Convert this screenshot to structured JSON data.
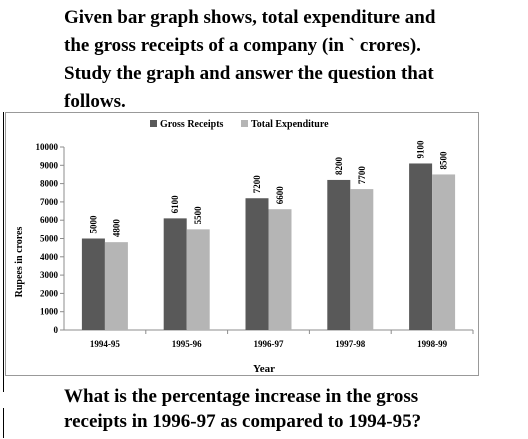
{
  "intro": {
    "line1": "Given bar graph shows, total expenditure and",
    "line2": "the gross receipts of a company (in ` crores).",
    "line3": "Study the graph and answer the question that",
    "line4": "follows."
  },
  "question": {
    "line1": "What is the percentage increase in the gross",
    "line2": "receipts in 1996-97 as compared to 1994-95?"
  },
  "colors": {
    "gross": "#595959",
    "expenditure": "#b5b5b5",
    "axis": "#8c8c8c",
    "frame": "#999999"
  },
  "chart_data": {
    "type": "bar",
    "categories": [
      "1994-95",
      "1995-96",
      "1996-97",
      "1997-98",
      "1998-99"
    ],
    "series": [
      {
        "name": "Gross Receipts",
        "values": [
          5000,
          6100,
          7200,
          8200,
          9100
        ]
      },
      {
        "name": "Total Expenditure",
        "values": [
          4800,
          5500,
          6600,
          7700,
          8500
        ]
      }
    ],
    "title": "",
    "xlabel": "Year",
    "ylabel": "Rupees in crores",
    "ylim": [
      0,
      10000
    ],
    "yticks": [
      "0",
      "1000",
      "2000",
      "3000",
      "4000",
      "5000",
      "6000",
      "7000",
      "8000",
      "9000",
      "10000"
    ],
    "data_labels": [
      [
        "5000",
        "6100",
        "7200",
        "8200",
        "9100"
      ],
      [
        "4800",
        "5500",
        "6600",
        "7700",
        "8500"
      ]
    ],
    "grid": false,
    "legend": "top"
  }
}
